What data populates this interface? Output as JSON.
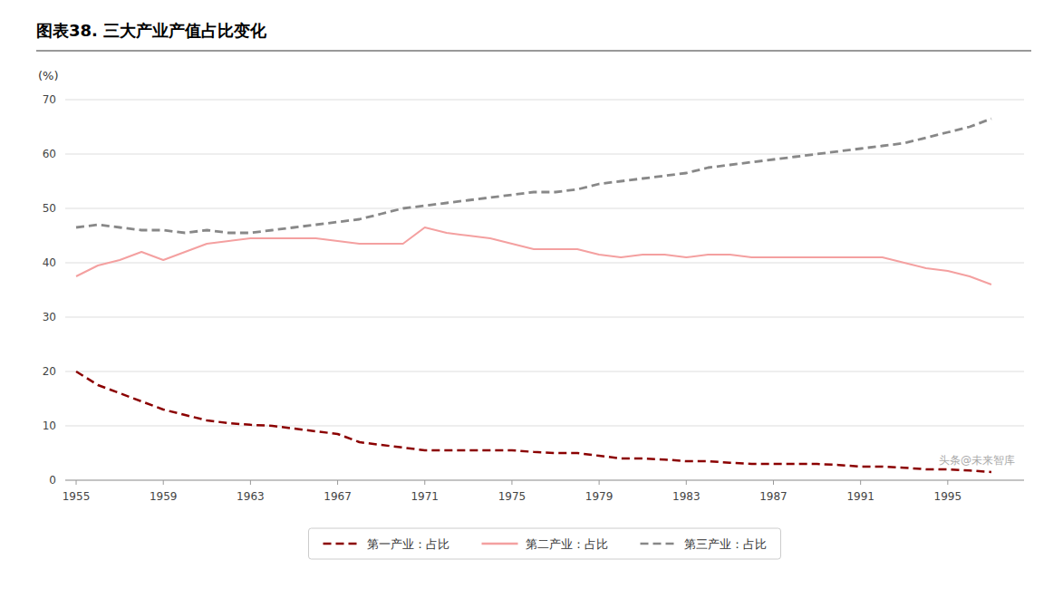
{
  "chart_data": {
    "type": "line",
    "title": "图表38.  三大产业产值占比变化",
    "y_label": "(%)",
    "x": [
      1955,
      1956,
      1957,
      1958,
      1959,
      1960,
      1961,
      1962,
      1963,
      1964,
      1965,
      1966,
      1967,
      1968,
      1969,
      1970,
      1971,
      1972,
      1973,
      1974,
      1975,
      1976,
      1977,
      1978,
      1979,
      1980,
      1981,
      1982,
      1983,
      1984,
      1985,
      1986,
      1987,
      1988,
      1989,
      1990,
      1991,
      1992,
      1993,
      1994,
      1995,
      1996,
      1997
    ],
    "series": [
      {
        "name": "第一产业：占比",
        "color": "#8B0000",
        "line_style": "dashed",
        "values": [
          20.0,
          17.5,
          16.0,
          14.5,
          13.0,
          12.0,
          11.0,
          10.5,
          10.2,
          10.0,
          9.5,
          9.0,
          8.5,
          7.0,
          6.5,
          6.0,
          5.5,
          5.5,
          5.5,
          5.5,
          5.5,
          5.2,
          5.0,
          5.0,
          4.5,
          4.0,
          4.0,
          3.8,
          3.5,
          3.5,
          3.2,
          3.0,
          3.0,
          3.0,
          3.0,
          2.8,
          2.5,
          2.5,
          2.3,
          2.0,
          2.0,
          1.8,
          1.5
        ]
      },
      {
        "name": "第二产业：占比",
        "color": "#F4A0A0",
        "line_style": "solid",
        "values": [
          37.5,
          39.5,
          40.5,
          42.0,
          40.5,
          42.0,
          43.5,
          44.0,
          44.5,
          44.5,
          44.5,
          44.5,
          44.0,
          43.5,
          43.5,
          43.5,
          46.5,
          45.5,
          45.0,
          44.5,
          43.5,
          42.5,
          42.5,
          42.5,
          41.5,
          41.0,
          41.5,
          41.5,
          41.0,
          41.5,
          41.5,
          41.0,
          41.0,
          41.0,
          41.0,
          41.0,
          41.0,
          41.0,
          40.0,
          39.0,
          38.5,
          37.5,
          36.0
        ]
      },
      {
        "name": "第三产业：占比",
        "color": "#888888",
        "line_style": "dashed",
        "values": [
          46.5,
          47.0,
          46.5,
          46.0,
          46.0,
          45.5,
          46.0,
          45.5,
          45.5,
          46.0,
          46.5,
          47.0,
          47.5,
          48.0,
          49.0,
          50.0,
          50.5,
          51.0,
          51.5,
          52.0,
          52.5,
          53.0,
          53.0,
          53.5,
          54.5,
          55.0,
          55.5,
          56.0,
          56.5,
          57.5,
          58.0,
          58.5,
          59.0,
          59.5,
          60.0,
          60.5,
          61.0,
          61.5,
          62.0,
          63.0,
          64.0,
          65.0,
          66.5
        ]
      }
    ],
    "xlim": [
      1954.5,
      1998.5
    ],
    "xticks": [
      1955,
      1959,
      1963,
      1967,
      1971,
      1975,
      1979,
      1983,
      1987,
      1991,
      1995
    ],
    "ylim": [
      0,
      70
    ],
    "yticks": [
      0,
      10,
      20,
      30,
      40,
      50,
      60,
      70
    ],
    "grid": true,
    "legend": "bottom",
    "annotations": [
      "头条@未来智库"
    ]
  }
}
